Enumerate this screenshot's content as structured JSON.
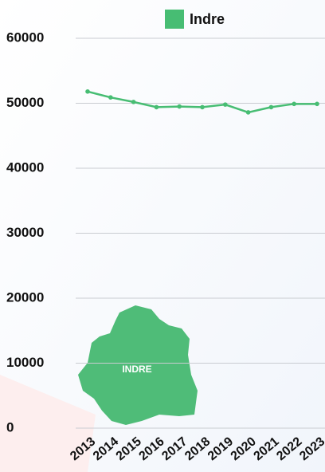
{
  "chart_data": {
    "type": "line",
    "categories": [
      "2013",
      "2014",
      "2015",
      "2016",
      "2017",
      "2018",
      "2019",
      "2020",
      "2021",
      "2022",
      "2023"
    ],
    "series": [
      {
        "name": "Indre",
        "color": "#47bd73",
        "values": [
          51800,
          50900,
          50200,
          49400,
          49500,
          49400,
          49800,
          48600,
          49400,
          49900,
          49900
        ]
      }
    ],
    "ylim": [
      0,
      60000
    ],
    "yticks": [
      0,
      10000,
      20000,
      30000,
      40000,
      50000,
      60000
    ],
    "grid": true,
    "map_label": "INDRE"
  }
}
